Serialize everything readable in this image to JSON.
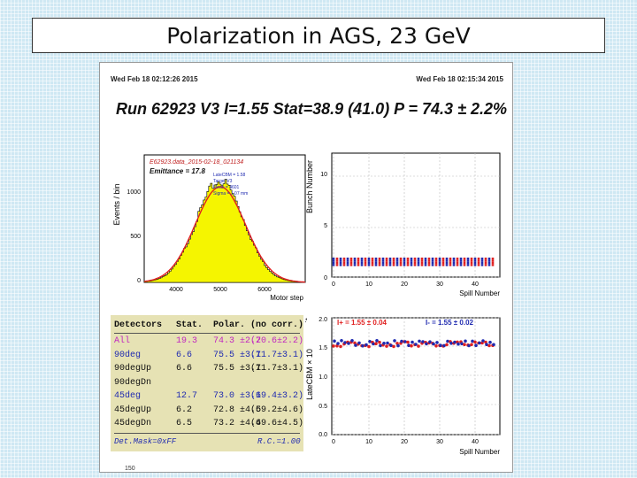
{
  "title": "Polarization in AGS, 23 GeV",
  "header": {
    "date_left": "Wed Feb 18 02:12:26 2015",
    "date_right": "Wed Feb 18 02:15:34 2015",
    "run_line": "Run 62923  V3  I=1.55  Stat=38.9 (41.0)  P = 74.3 ± 2.2%"
  },
  "histogram": {
    "file_label": "E62923.data_2015-02-18_021134",
    "emittance": "Emittance = 17.8",
    "stats_lines": [
      "LateCBM = 1.58",
      "Target V3",
      "Mean = 4601",
      "Sigma = 1.07 mm"
    ],
    "ylabel": "Events / bin",
    "xlabel": "Motor step",
    "y_ticks": [
      "0",
      "500",
      "1000"
    ],
    "x_ticks": [
      "4000",
      "5000",
      "6000"
    ],
    "fill_color": "#f5f500",
    "fit_color": "#e02020"
  },
  "bunch_plot": {
    "ylabel": "Bunch Number",
    "xlabel": "Spill Number",
    "y_ticks": [
      "0",
      "5",
      "10"
    ],
    "x_ticks": [
      "0",
      "10",
      "20",
      "30",
      "40"
    ]
  },
  "late_plot": {
    "ylabel": "LateCBM × 10",
    "exponent": "-1",
    "xlabel": "Spill Number",
    "y_ticks": [
      "0.0",
      "0.5",
      "1.0",
      "1.5",
      "2.0"
    ],
    "x_ticks": [
      "0",
      "10",
      "20",
      "30",
      "40"
    ],
    "i_plus": "I+ = 1.55 ± 0.04",
    "i_minus": "I- = 1.55 ± 0.02",
    "plus_color": "#e02020",
    "minus_color": "#1f2ab0"
  },
  "stats_table": {
    "headers": [
      "Detectors",
      "Stat.",
      "Polar.",
      "(no corr.)"
    ],
    "rows": [
      {
        "det": "All",
        "stat": "19.3",
        "polar": "74.3 ±2.2",
        "nocorr": "(70.6±2.2)",
        "color": "#c026c0"
      },
      {
        "det": "90deg",
        "stat": "6.6",
        "polar": "75.5 ±3.1",
        "nocorr": "(71.7±3.1)",
        "color": "#1f2ab0"
      },
      {
        "det": "90degUp",
        "stat": "6.6",
        "polar": "75.5 ±3.1",
        "nocorr": "(71.7±3.1)",
        "color": "#111111"
      },
      {
        "det": "90degDn",
        "stat": "",
        "polar": "",
        "nocorr": "",
        "color": "#111111"
      },
      {
        "det": "45deg",
        "stat": "12.7",
        "polar": "73.0 ±3.1",
        "nocorr": "(69.4±3.2)",
        "color": "#1f2ab0"
      },
      {
        "det": "45degUp",
        "stat": "6.2",
        "polar": "72.8 ±4.5",
        "nocorr": "(69.2±4.6)",
        "color": "#111111"
      },
      {
        "det": "45degDn",
        "stat": "6.5",
        "polar": "73.2 ±4.4",
        "nocorr": "(69.6±4.5)",
        "color": "#111111"
      }
    ],
    "mask": "Det.Mask=0xFF",
    "rc": "R.C.=1.00"
  },
  "cut_label": "150"
}
